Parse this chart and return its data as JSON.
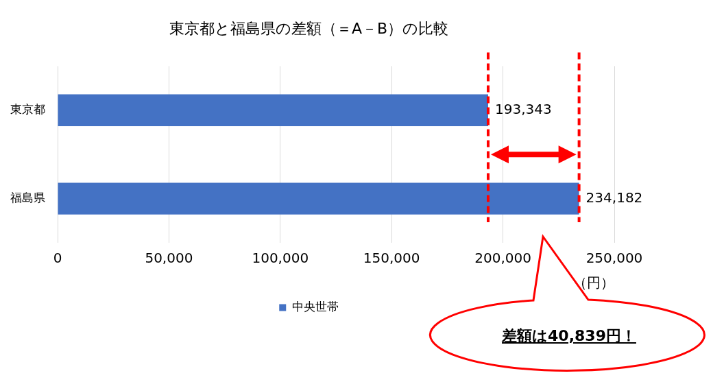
{
  "chart_data": {
    "type": "bar",
    "orientation": "horizontal",
    "title": "東京都と福島県の差額（＝A－B）の比較",
    "xlabel": "（円）",
    "categories": [
      "東京都",
      "福島県"
    ],
    "series": [
      {
        "name": "中央世帯",
        "color": "#4472c4",
        "values": [
          193343,
          234182
        ],
        "value_labels": [
          "193,343",
          "234,182"
        ]
      }
    ],
    "xlim": [
      0,
      250000
    ],
    "xticks": [
      {
        "value": 0,
        "label": "0"
      },
      {
        "value": 50000,
        "label": "50,000"
      },
      {
        "value": 100000,
        "label": "100,000"
      },
      {
        "value": 150000,
        "label": "150,000"
      },
      {
        "value": 200000,
        "label": "200,000"
      },
      {
        "value": 250000,
        "label": "250,000"
      }
    ],
    "grid": "x",
    "legend": "bottom",
    "ref_lines": [
      {
        "axis": "x",
        "value": 193343,
        "color": "#ff0000",
        "line_style": "dashed"
      },
      {
        "axis": "x",
        "value": 234182,
        "color": "#ff0000",
        "line_style": "dashed"
      }
    ],
    "annotations": [
      "差額は40,839円！"
    ]
  }
}
